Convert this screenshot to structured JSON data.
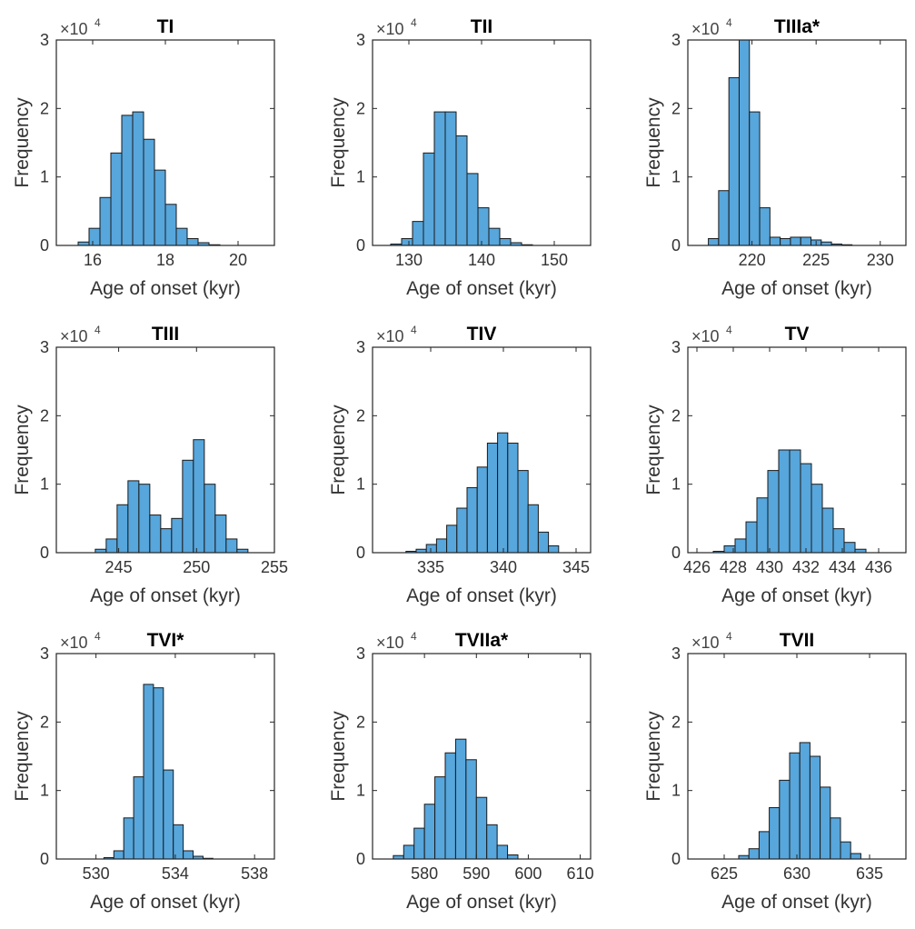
{
  "chart_data": [
    {
      "type": "bar",
      "title": "TI",
      "xlabel": "Age of onset (kyr)",
      "ylabel": "Frequency",
      "y_multiplier": "×10",
      "y_exponent": "4",
      "xlim": [
        15,
        21
      ],
      "ylim": [
        0,
        3
      ],
      "xticks": [
        16,
        18,
        20
      ],
      "xtick_labels": [
        "16",
        "18",
        "20"
      ],
      "yticks": [
        0,
        1,
        2,
        3
      ],
      "ytick_labels": [
        "0",
        "1",
        "2",
        "3"
      ],
      "bin_edges": [
        15.6,
        15.9,
        16.2,
        16.5,
        16.8,
        17.1,
        17.4,
        17.7,
        18.0,
        18.3,
        18.6,
        18.9,
        19.2,
        19.5
      ],
      "values": [
        0.05,
        0.25,
        0.7,
        1.35,
        1.9,
        1.95,
        1.55,
        1.1,
        0.6,
        0.25,
        0.1,
        0.04,
        0.01
      ]
    },
    {
      "type": "bar",
      "title": "TII",
      "xlabel": "Age of onset (kyr)",
      "ylabel": "Frequency",
      "y_multiplier": "×10",
      "y_exponent": "4",
      "xlim": [
        125,
        155
      ],
      "ylim": [
        0,
        3
      ],
      "xticks": [
        130,
        140,
        150
      ],
      "xtick_labels": [
        "130",
        "140",
        "150"
      ],
      "yticks": [
        0,
        1,
        2,
        3
      ],
      "ytick_labels": [
        "0",
        "1",
        "2",
        "3"
      ],
      "bin_edges": [
        127.5,
        129.0,
        130.5,
        132.0,
        133.5,
        135.0,
        136.5,
        138.0,
        139.5,
        141.0,
        142.5,
        144.0,
        145.5,
        147.0
      ],
      "values": [
        0.02,
        0.1,
        0.35,
        1.35,
        1.95,
        1.95,
        1.6,
        1.05,
        0.55,
        0.25,
        0.1,
        0.04,
        0.01
      ]
    },
    {
      "type": "bar",
      "title": "TIIIa*",
      "xlabel": "Age of onset (kyr)",
      "ylabel": "Frequency",
      "y_multiplier": "×10",
      "y_exponent": "4",
      "xlim": [
        215,
        232
      ],
      "ylim": [
        0,
        3
      ],
      "xticks": [
        220,
        225,
        230
      ],
      "xtick_labels": [
        "220",
        "225",
        "230"
      ],
      "yticks": [
        0,
        1,
        2,
        3
      ],
      "ytick_labels": [
        "0",
        "1",
        "2",
        "3"
      ],
      "bin_edges": [
        216.6,
        217.4,
        218.2,
        219.0,
        219.8,
        220.6,
        221.4,
        222.2,
        223.0,
        223.8,
        224.6,
        225.4,
        226.2,
        227.0,
        227.8
      ],
      "values": [
        0.1,
        0.8,
        2.45,
        3.0,
        1.95,
        0.55,
        0.12,
        0.1,
        0.12,
        0.12,
        0.08,
        0.05,
        0.02,
        0.01
      ]
    },
    {
      "type": "bar",
      "title": "TIII",
      "xlabel": "Age of onset (kyr)",
      "ylabel": "Frequency",
      "y_multiplier": "×10",
      "y_exponent": "4",
      "xlim": [
        241,
        255
      ],
      "ylim": [
        0,
        3
      ],
      "xticks": [
        245,
        250,
        255
      ],
      "xtick_labels": [
        "245",
        "250",
        "255"
      ],
      "yticks": [
        0,
        1,
        2,
        3
      ],
      "ytick_labels": [
        "0",
        "1",
        "2",
        "3"
      ],
      "bin_edges": [
        243.5,
        244.2,
        244.9,
        245.6,
        246.3,
        247.0,
        247.7,
        248.4,
        249.1,
        249.8,
        250.5,
        251.2,
        251.9,
        252.6,
        253.3
      ],
      "values": [
        0.05,
        0.2,
        0.7,
        1.05,
        1.0,
        0.55,
        0.35,
        0.5,
        1.35,
        1.65,
        1.0,
        0.55,
        0.2,
        0.05
      ]
    },
    {
      "type": "bar",
      "title": "TIV",
      "xlabel": "Age of onset (kyr)",
      "ylabel": "Frequency",
      "y_multiplier": "×10",
      "y_exponent": "4",
      "xlim": [
        331,
        346
      ],
      "ylim": [
        0,
        3
      ],
      "xticks": [
        335,
        340,
        345
      ],
      "xtick_labels": [
        "335",
        "340",
        "345"
      ],
      "yticks": [
        0,
        1,
        2,
        3
      ],
      "ytick_labels": [
        "0",
        "1",
        "2",
        "3"
      ],
      "bin_edges": [
        333.3,
        334.0,
        334.7,
        335.4,
        336.1,
        336.8,
        337.5,
        338.2,
        338.9,
        339.6,
        340.3,
        341.0,
        341.7,
        342.4,
        343.1,
        343.8
      ],
      "values": [
        0.02,
        0.05,
        0.12,
        0.2,
        0.4,
        0.65,
        0.95,
        1.25,
        1.6,
        1.75,
        1.6,
        1.2,
        0.7,
        0.3,
        0.1
      ]
    },
    {
      "type": "bar",
      "title": "TV",
      "xlabel": "Age of onset (kyr)",
      "ylabel": "Frequency",
      "y_multiplier": "×10",
      "y_exponent": "4",
      "xlim": [
        425.5,
        437.5
      ],
      "ylim": [
        0,
        3
      ],
      "xticks": [
        426,
        428,
        430,
        432,
        434,
        436
      ],
      "xtick_labels": [
        "426",
        "428",
        "430",
        "432",
        "434",
        "436"
      ],
      "yticks": [
        0,
        1,
        2,
        3
      ],
      "ytick_labels": [
        "0",
        "1",
        "2",
        "3"
      ],
      "bin_edges": [
        426.9,
        427.5,
        428.1,
        428.7,
        429.3,
        429.9,
        430.5,
        431.1,
        431.7,
        432.3,
        432.9,
        433.5,
        434.1,
        434.7,
        435.3
      ],
      "values": [
        0.02,
        0.1,
        0.2,
        0.45,
        0.8,
        1.2,
        1.5,
        1.5,
        1.3,
        1.0,
        0.65,
        0.35,
        0.15,
        0.05
      ]
    },
    {
      "type": "bar",
      "title": "TVI*",
      "xlabel": "Age of onset (kyr)",
      "ylabel": "Frequency",
      "y_multiplier": "×10",
      "y_exponent": "4",
      "xlim": [
        528,
        539
      ],
      "ylim": [
        0,
        3
      ],
      "xticks": [
        530,
        534,
        538
      ],
      "xtick_labels": [
        "530",
        "534",
        "538"
      ],
      "yticks": [
        0,
        1,
        2,
        3
      ],
      "ytick_labels": [
        "0",
        "1",
        "2",
        "3"
      ],
      "bin_edges": [
        530.4,
        530.9,
        531.4,
        531.9,
        532.4,
        532.9,
        533.4,
        533.9,
        534.4,
        534.9,
        535.4,
        535.9
      ],
      "values": [
        0.02,
        0.12,
        0.6,
        1.2,
        2.55,
        2.5,
        1.3,
        0.5,
        0.12,
        0.04,
        0.01
      ]
    },
    {
      "type": "bar",
      "title": "TVIIa*",
      "xlabel": "Age of onset (kyr)",
      "ylabel": "Frequency",
      "y_multiplier": "×10",
      "y_exponent": "4",
      "xlim": [
        570,
        612
      ],
      "ylim": [
        0,
        3
      ],
      "xticks": [
        580,
        590,
        600,
        610
      ],
      "xtick_labels": [
        "580",
        "590",
        "600",
        "610"
      ],
      "yticks": [
        0,
        1,
        2,
        3
      ],
      "ytick_labels": [
        "0",
        "1",
        "2",
        "3"
      ],
      "bin_edges": [
        574.0,
        576.0,
        578.0,
        580.0,
        582.0,
        584.0,
        586.0,
        588.0,
        590.0,
        592.0,
        594.0,
        596.0,
        598.0
      ],
      "values": [
        0.05,
        0.2,
        0.45,
        0.8,
        1.2,
        1.55,
        1.75,
        1.45,
        0.9,
        0.5,
        0.2,
        0.06
      ]
    },
    {
      "type": "bar",
      "title": "TVII",
      "xlabel": "Age of onset (kyr)",
      "ylabel": "Frequency",
      "y_multiplier": "×10",
      "y_exponent": "4",
      "xlim": [
        622.5,
        637.5
      ],
      "ylim": [
        0,
        3
      ],
      "xticks": [
        625,
        630,
        635
      ],
      "xtick_labels": [
        "625",
        "630",
        "635"
      ],
      "yticks": [
        0,
        1,
        2,
        3
      ],
      "ytick_labels": [
        "0",
        "1",
        "2",
        "3"
      ],
      "bin_edges": [
        626.0,
        626.7,
        627.4,
        628.1,
        628.8,
        629.5,
        630.2,
        630.9,
        631.6,
        632.3,
        633.0,
        633.7,
        634.4
      ],
      "values": [
        0.05,
        0.15,
        0.4,
        0.75,
        1.15,
        1.55,
        1.7,
        1.5,
        1.05,
        0.6,
        0.25,
        0.08
      ]
    }
  ]
}
